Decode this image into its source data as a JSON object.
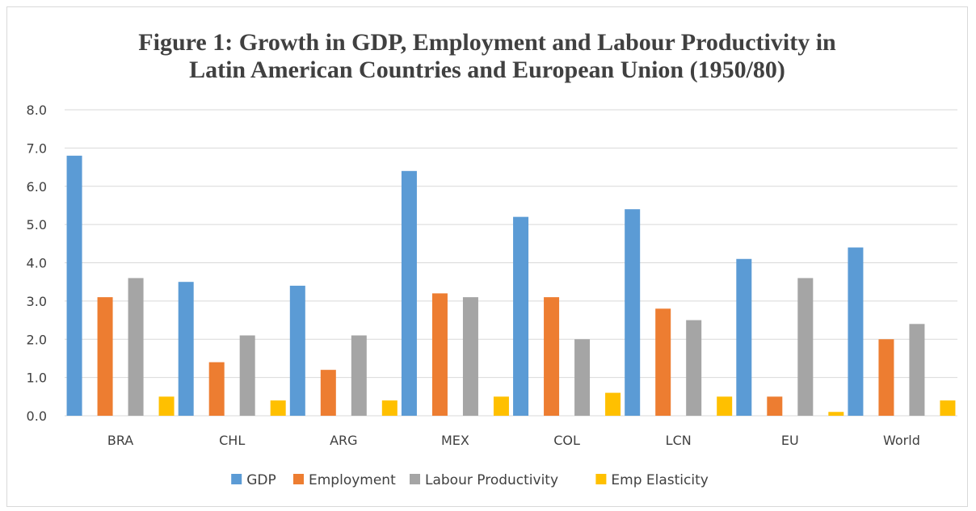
{
  "chart_data": {
    "type": "bar",
    "title_line1": "Figure 1: Growth in GDP, Employment and Labour Productivity in",
    "title_line2": "Latin American Countries and European Union (1950/80)",
    "categories": [
      "BRA",
      "CHL",
      "ARG",
      "MEX",
      "COL",
      "LCN",
      "EU",
      "World"
    ],
    "series": [
      {
        "name": "GDP",
        "color": "#5b9bd5",
        "values": [
          6.8,
          3.5,
          3.4,
          6.4,
          5.2,
          5.4,
          4.1,
          4.4
        ]
      },
      {
        "name": "Employment",
        "color": "#ed7d31",
        "values": [
          3.1,
          1.4,
          1.2,
          3.2,
          3.1,
          2.8,
          0.5,
          2.0
        ]
      },
      {
        "name": "Labour Productivity",
        "color": "#a5a5a5",
        "values": [
          3.6,
          2.1,
          2.1,
          3.1,
          2.0,
          2.5,
          3.6,
          2.4
        ]
      },
      {
        "name": "Emp Elasticity",
        "color": "#ffc000",
        "values": [
          0.5,
          0.4,
          0.4,
          0.5,
          0.6,
          0.5,
          0.1,
          0.4
        ]
      }
    ],
    "ylim": [
      0,
      8
    ],
    "yticks": [
      "0.0",
      "1.0",
      "2.0",
      "3.0",
      "4.0",
      "5.0",
      "6.0",
      "7.0",
      "8.0"
    ],
    "grid": true,
    "legend_position": "bottom"
  }
}
